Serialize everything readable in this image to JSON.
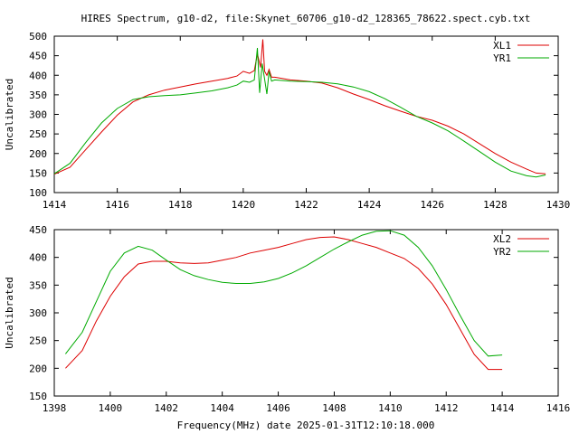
{
  "chart_data": [
    {
      "type": "line",
      "title": "HIRES Spectrum, g10-d2, file:Skynet_60706_g10-d2_128365_78622.spect.cyb.txt",
      "xlabel": "",
      "ylabel": "Uncalibrated",
      "xlim": [
        1414,
        1430
      ],
      "ylim": [
        100,
        500
      ],
      "xticks": [
        1414,
        1416,
        1418,
        1420,
        1422,
        1424,
        1426,
        1428,
        1430
      ],
      "yticks": [
        100,
        150,
        200,
        250,
        300,
        350,
        400,
        450,
        500
      ],
      "legend_position": "top-right",
      "grid": false,
      "series": [
        {
          "name": "XL1",
          "color": "#dd0000",
          "x": [
            1414.0,
            1414.5,
            1415.0,
            1415.5,
            1416.0,
            1416.5,
            1417.0,
            1417.5,
            1418.0,
            1418.5,
            1419.0,
            1419.5,
            1419.8,
            1420.0,
            1420.2,
            1420.35,
            1420.45,
            1420.55,
            1420.62,
            1420.68,
            1420.75,
            1420.82,
            1420.9,
            1421.0,
            1421.5,
            1422.0,
            1422.5,
            1423.0,
            1423.5,
            1424.0,
            1424.5,
            1425.0,
            1425.5,
            1426.0,
            1426.5,
            1427.0,
            1427.5,
            1428.0,
            1428.5,
            1429.0,
            1429.3,
            1429.6
          ],
          "y": [
            147,
            165,
            210,
            255,
            298,
            332,
            350,
            362,
            370,
            378,
            385,
            392,
            398,
            410,
            405,
            412,
            455,
            420,
            492,
            410,
            400,
            415,
            395,
            395,
            388,
            385,
            380,
            368,
            352,
            338,
            322,
            308,
            295,
            285,
            270,
            250,
            225,
            200,
            178,
            160,
            150,
            148
          ]
        },
        {
          "name": "YR1",
          "color": "#00aa00",
          "x": [
            1414.0,
            1414.5,
            1415.0,
            1415.5,
            1416.0,
            1416.5,
            1417.0,
            1417.5,
            1418.0,
            1418.5,
            1419.0,
            1419.5,
            1419.8,
            1420.0,
            1420.2,
            1420.35,
            1420.45,
            1420.52,
            1420.6,
            1420.68,
            1420.75,
            1420.82,
            1420.9,
            1421.0,
            1421.5,
            1422.0,
            1422.5,
            1423.0,
            1423.5,
            1424.0,
            1424.5,
            1425.0,
            1425.5,
            1426.0,
            1426.5,
            1427.0,
            1427.5,
            1428.0,
            1428.5,
            1429.0,
            1429.3,
            1429.6
          ],
          "y": [
            148,
            175,
            228,
            278,
            315,
            338,
            345,
            348,
            350,
            355,
            360,
            368,
            375,
            385,
            382,
            388,
            470,
            355,
            430,
            390,
            352,
            410,
            385,
            388,
            385,
            384,
            382,
            378,
            370,
            358,
            340,
            318,
            295,
            278,
            258,
            232,
            205,
            178,
            155,
            143,
            140,
            145
          ]
        }
      ]
    },
    {
      "type": "line",
      "title": "",
      "xlabel": "Frequency(MHz) date 2025-01-31T12:10:18.000",
      "ylabel": "Uncalibrated",
      "xlim": [
        1398,
        1416
      ],
      "ylim": [
        150,
        450
      ],
      "xticks": [
        1398,
        1400,
        1402,
        1404,
        1406,
        1408,
        1410,
        1412,
        1414,
        1416
      ],
      "yticks": [
        150,
        200,
        250,
        300,
        350,
        400,
        450
      ],
      "legend_position": "top-right",
      "grid": false,
      "series": [
        {
          "name": "XL2",
          "color": "#dd0000",
          "x": [
            1398.4,
            1399.0,
            1399.5,
            1400.0,
            1400.5,
            1401.0,
            1401.5,
            1402.0,
            1402.5,
            1403.0,
            1403.5,
            1404.0,
            1404.5,
            1405.0,
            1405.5,
            1406.0,
            1406.5,
            1407.0,
            1407.5,
            1408.0,
            1408.5,
            1409.0,
            1409.5,
            1410.0,
            1410.5,
            1411.0,
            1411.5,
            1412.0,
            1412.5,
            1413.0,
            1413.5,
            1414.0
          ],
          "y": [
            200,
            232,
            285,
            330,
            365,
            388,
            393,
            393,
            390,
            389,
            390,
            395,
            400,
            408,
            413,
            418,
            425,
            432,
            436,
            437,
            432,
            425,
            418,
            408,
            398,
            380,
            352,
            315,
            270,
            225,
            198,
            198
          ]
        },
        {
          "name": "YR2",
          "color": "#00aa00",
          "x": [
            1398.4,
            1399.0,
            1399.5,
            1400.0,
            1400.5,
            1401.0,
            1401.5,
            1402.0,
            1402.5,
            1403.0,
            1403.5,
            1404.0,
            1404.5,
            1405.0,
            1405.5,
            1406.0,
            1406.5,
            1407.0,
            1407.5,
            1408.0,
            1408.5,
            1409.0,
            1409.5,
            1410.0,
            1410.5,
            1411.0,
            1411.5,
            1412.0,
            1412.5,
            1413.0,
            1413.5,
            1414.0
          ],
          "y": [
            226,
            265,
            320,
            375,
            408,
            420,
            413,
            395,
            378,
            367,
            360,
            355,
            353,
            353,
            356,
            362,
            372,
            385,
            400,
            415,
            428,
            440,
            447,
            448,
            440,
            418,
            385,
            342,
            295,
            250,
            222,
            224
          ]
        }
      ]
    }
  ]
}
